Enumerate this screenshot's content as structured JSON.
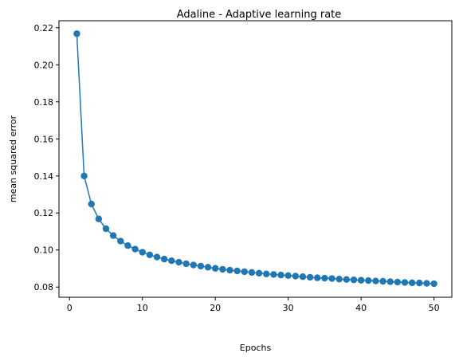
{
  "chart_data": {
    "type": "line",
    "title": "Adaline - Adaptive learning rate",
    "xlabel": "Epochs",
    "ylabel": "mean squared error",
    "xlim": [
      -1.45,
      52.45
    ],
    "ylim": [
      0.0745,
      0.2238
    ],
    "xticks": [
      0,
      10,
      20,
      30,
      40,
      50
    ],
    "yticks": [
      0.08,
      0.1,
      0.12,
      0.14,
      0.16,
      0.18,
      0.2,
      0.22
    ],
    "ytick_labels": [
      "0.08",
      "0.10",
      "0.12",
      "0.14",
      "0.16",
      "0.18",
      "0.20",
      "0.22"
    ],
    "grid": false,
    "marker": "circle",
    "series_color": "#1f77b4",
    "series": [
      {
        "x": [
          1,
          2,
          3,
          4,
          5,
          6,
          7,
          8,
          9,
          10,
          11,
          12,
          13,
          14,
          15,
          16,
          17,
          18,
          19,
          20,
          21,
          22,
          23,
          24,
          25,
          26,
          27,
          28,
          29,
          30,
          31,
          32,
          33,
          34,
          35,
          36,
          37,
          38,
          39,
          40,
          41,
          42,
          43,
          44,
          45,
          46,
          47,
          48,
          49,
          50
        ],
        "values": [
          0.2168,
          0.14,
          0.1248,
          0.1168,
          0.1115,
          0.1078,
          0.1048,
          0.1024,
          0.1005,
          0.0988,
          0.0974,
          0.0962,
          0.0951,
          0.0942,
          0.0934,
          0.0926,
          0.0919,
          0.0913,
          0.0907,
          0.0901,
          0.0896,
          0.0891,
          0.0887,
          0.0883,
          0.0879,
          0.0875,
          0.0871,
          0.0868,
          0.0865,
          0.0862,
          0.0859,
          0.0856,
          0.0853,
          0.085,
          0.0848,
          0.0846,
          0.0843,
          0.0841,
          0.0839,
          0.0837,
          0.0835,
          0.0833,
          0.0831,
          0.0829,
          0.0827,
          0.0825,
          0.0823,
          0.0822,
          0.082,
          0.0818
        ]
      }
    ]
  }
}
